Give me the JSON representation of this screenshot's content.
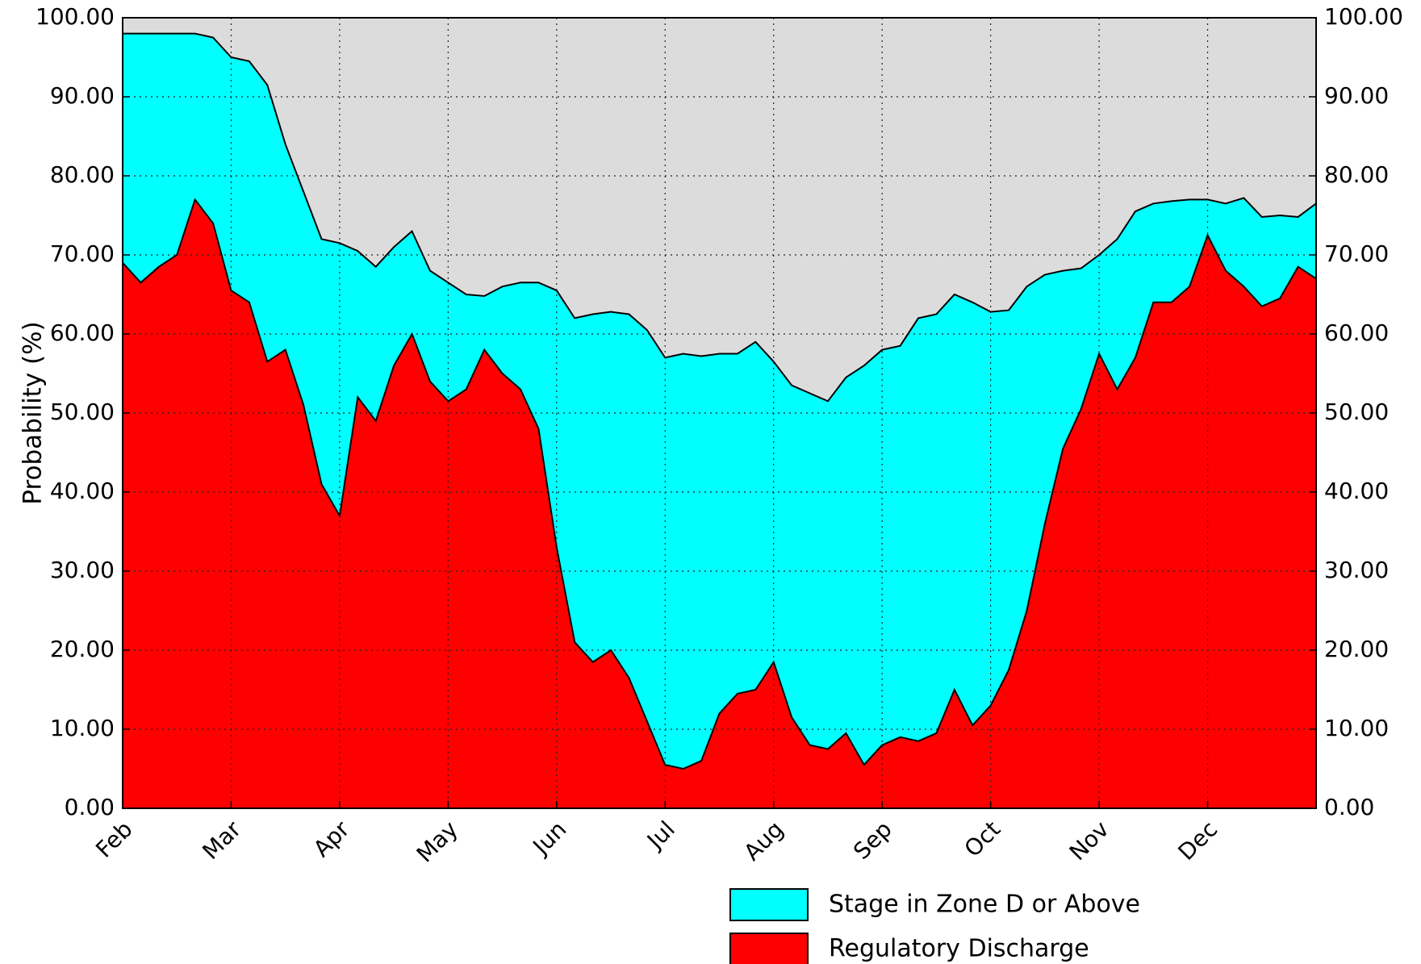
{
  "chart_data": {
    "type": "area",
    "ylabel": "Probability  (%)",
    "categories": [
      "Feb",
      null,
      null,
      null,
      null,
      null,
      "Mar",
      null,
      null,
      null,
      null,
      null,
      "Apr",
      null,
      null,
      null,
      null,
      null,
      "May",
      null,
      null,
      null,
      null,
      null,
      "Jun",
      null,
      null,
      null,
      null,
      null,
      "Jul",
      null,
      null,
      null,
      null,
      null,
      "Aug",
      null,
      null,
      null,
      null,
      null,
      "Sep",
      null,
      null,
      null,
      null,
      null,
      "Oct",
      null,
      null,
      null,
      null,
      null,
      "Nov",
      null,
      null,
      null,
      null,
      null,
      "Dec",
      null,
      null,
      null,
      null,
      null,
      null
    ],
    "series": [
      {
        "name": "Stage in Zone D or Above",
        "color": "#00ffff",
        "values": [
          98,
          98,
          98,
          98,
          98,
          97.5,
          95,
          94.5,
          91.5,
          84,
          78,
          72,
          71.5,
          70.5,
          68.5,
          71,
          73,
          68,
          66.5,
          65,
          64.8,
          66,
          66.5,
          66.5,
          65.5,
          62,
          62.5,
          62.8,
          62.5,
          60.5,
          57,
          57.5,
          57.2,
          57.5,
          57.5,
          59,
          56.5,
          53.5,
          52.5,
          51.5,
          54.5,
          56,
          58,
          58.5,
          62,
          62.5,
          65,
          64,
          62.8,
          63,
          66,
          67.5,
          68,
          68.3,
          70,
          72,
          75.5,
          76.5,
          76.8,
          77,
          77,
          76.5,
          77.2,
          74.8,
          75,
          74.8,
          76.5
        ]
      },
      {
        "name": "Regulatory Discharge",
        "color": "#ff0000",
        "values": [
          69,
          66.5,
          68.5,
          70,
          77,
          74,
          65.5,
          64,
          56.5,
          58,
          51,
          41,
          37,
          52,
          49,
          56,
          60,
          54,
          51.5,
          53,
          58,
          55,
          53,
          48,
          33,
          21,
          18.5,
          20,
          16.5,
          11,
          5.5,
          5,
          6,
          12,
          14.5,
          15,
          18.5,
          11.5,
          8,
          7.5,
          9.5,
          5.5,
          8,
          9,
          8.5,
          9.5,
          15,
          10.5,
          13,
          17.5,
          25,
          36,
          45.5,
          50.5,
          57.5,
          53,
          57,
          64,
          64,
          66,
          72.5,
          68,
          66,
          63.5,
          64.5,
          68.5,
          67
        ]
      }
    ],
    "ylim": [
      0,
      100
    ],
    "yticks": [
      {
        "value": 0,
        "label": "0.00"
      },
      {
        "value": 10,
        "label": "10.00"
      },
      {
        "value": 20,
        "label": "20.00"
      },
      {
        "value": 30,
        "label": "30.00"
      },
      {
        "value": 40,
        "label": "40.00"
      },
      {
        "value": 50,
        "label": "50.00"
      },
      {
        "value": 60,
        "label": "60.00"
      },
      {
        "value": 70,
        "label": "70.00"
      },
      {
        "value": 80,
        "label": "80.00"
      },
      {
        "value": 90,
        "label": "90.00"
      },
      {
        "value": 100,
        "label": "100.00"
      }
    ],
    "y2lim": [
      0,
      100
    ],
    "y2ticks": [
      {
        "value": 0,
        "label": "0.00"
      },
      {
        "value": 10,
        "label": "10.00"
      },
      {
        "value": 20,
        "label": "20.00"
      },
      {
        "value": 30,
        "label": "30.00"
      },
      {
        "value": 40,
        "label": "40.00"
      },
      {
        "value": 50,
        "label": "50.00"
      },
      {
        "value": 60,
        "label": "60.00"
      },
      {
        "value": 70,
        "label": "70.00"
      },
      {
        "value": 80,
        "label": "80.00"
      },
      {
        "value": 90,
        "label": "90.00"
      },
      {
        "value": 100,
        "label": "100.00"
      }
    ],
    "grid": true,
    "background": "#dcdcdc",
    "legend": "bottom right"
  }
}
